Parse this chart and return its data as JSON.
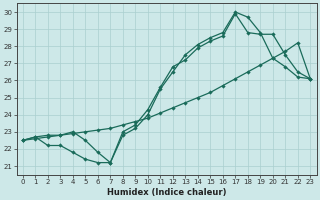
{
  "xlabel": "Humidex (Indice chaleur)",
  "xlim": [
    -0.5,
    23.5
  ],
  "ylim": [
    20.5,
    30.5
  ],
  "xticks": [
    0,
    1,
    2,
    3,
    4,
    5,
    6,
    7,
    8,
    9,
    10,
    11,
    12,
    13,
    14,
    15,
    16,
    17,
    18,
    19,
    20,
    21,
    22,
    23
  ],
  "yticks": [
    21,
    22,
    23,
    24,
    25,
    26,
    27,
    28,
    29,
    30
  ],
  "background_color": "#cde8e8",
  "grid_color": "#aacfcf",
  "line_color": "#1a6b5a",
  "line1_x": [
    0,
    1,
    2,
    3,
    4,
    5,
    6,
    7,
    8,
    9,
    10,
    11,
    12,
    13,
    14,
    15,
    16,
    17,
    18,
    19,
    20,
    21,
    22,
    23
  ],
  "line1_y": [
    22.5,
    22.6,
    22.7,
    22.8,
    22.9,
    23.0,
    23.1,
    23.2,
    23.4,
    23.6,
    23.8,
    24.1,
    24.4,
    24.7,
    25.0,
    25.3,
    25.7,
    26.1,
    26.5,
    26.9,
    27.3,
    27.7,
    28.2,
    26.1
  ],
  "line2_x": [
    0,
    1,
    2,
    3,
    4,
    5,
    6,
    7,
    8,
    9,
    10,
    11,
    12,
    13,
    14,
    15,
    16,
    17,
    18,
    19,
    20,
    21,
    22,
    23
  ],
  "line2_y": [
    22.5,
    22.7,
    22.2,
    22.2,
    21.8,
    21.4,
    21.2,
    21.2,
    22.8,
    23.2,
    24.0,
    25.5,
    26.5,
    27.5,
    28.1,
    28.5,
    28.8,
    30.0,
    29.7,
    28.8,
    27.3,
    26.8,
    26.2,
    26.1
  ],
  "line3_x": [
    0,
    1,
    2,
    3,
    4,
    5,
    6,
    7,
    8,
    9,
    10,
    11,
    12,
    13,
    14,
    15,
    16,
    17,
    18,
    19,
    20,
    21,
    22,
    23
  ],
  "line3_y": [
    22.5,
    22.7,
    22.8,
    22.8,
    23.0,
    22.5,
    21.8,
    21.2,
    23.0,
    23.4,
    24.3,
    25.6,
    26.8,
    27.2,
    27.9,
    28.3,
    28.6,
    29.9,
    28.8,
    28.7,
    28.7,
    27.5,
    26.5,
    26.1
  ]
}
